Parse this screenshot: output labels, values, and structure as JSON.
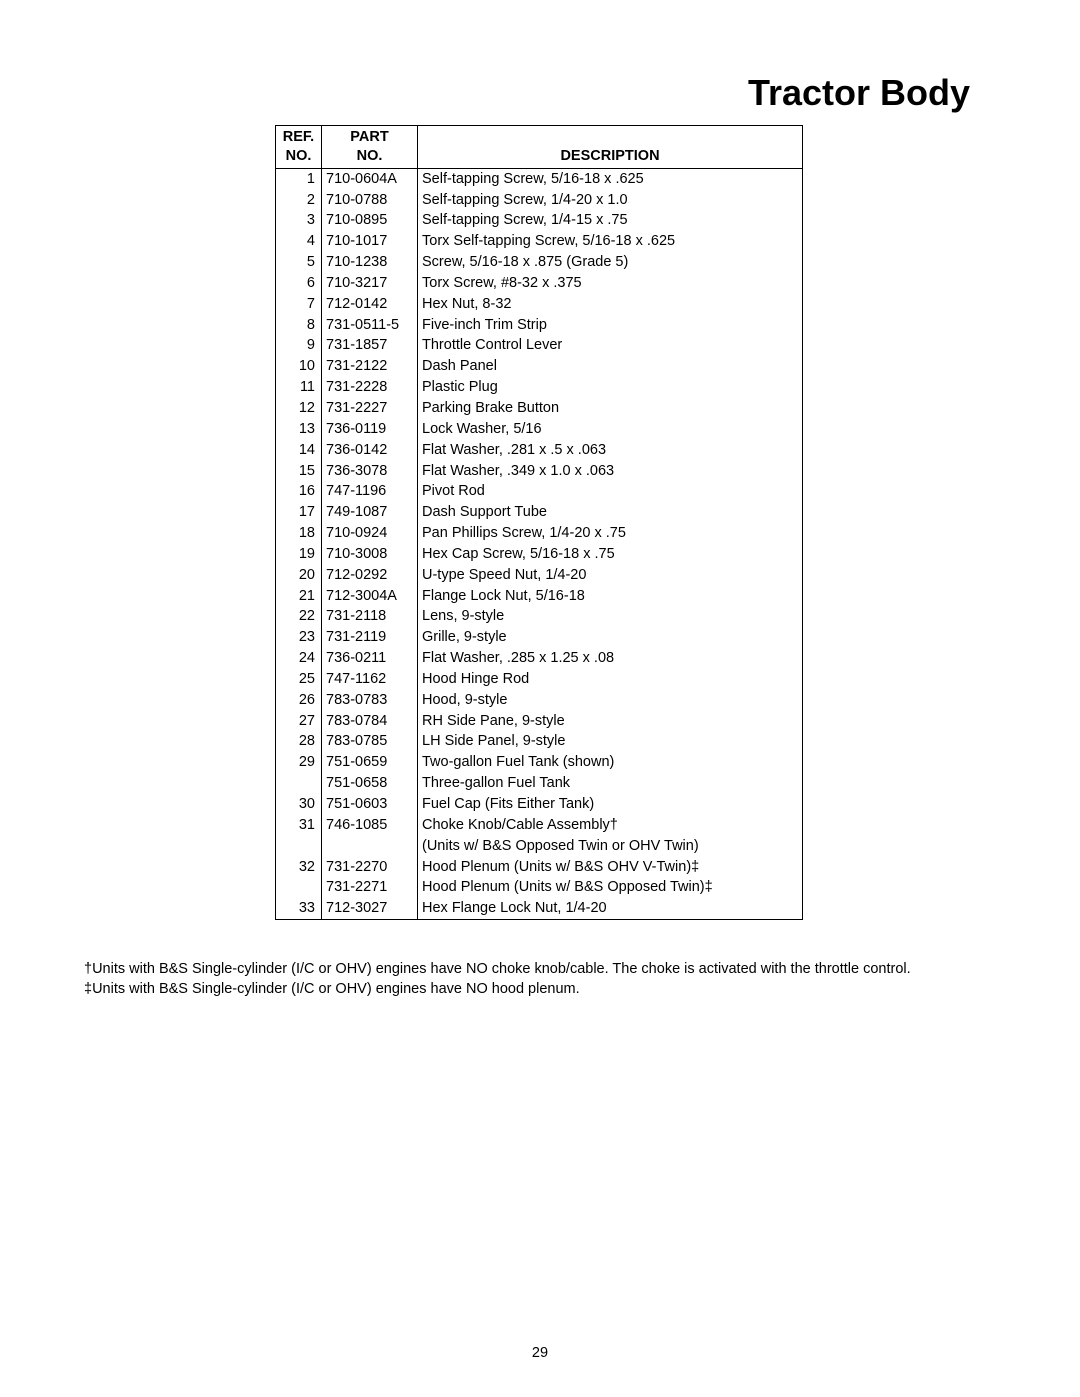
{
  "title": "Tractor Body",
  "table": {
    "headers": {
      "ref_line1": "REF.",
      "ref_line2": "NO.",
      "part_line1": "PART",
      "part_line2": "NO.",
      "desc": "DESCRIPTION"
    },
    "rows": [
      {
        "ref": "1",
        "part": "710-0604A",
        "desc": "Self-tapping Screw, 5/16-18 x .625"
      },
      {
        "ref": "2",
        "part": "710-0788",
        "desc": "Self-tapping Screw, 1/4-20 x 1.0"
      },
      {
        "ref": "3",
        "part": "710-0895",
        "desc": "Self-tapping Screw, 1/4-15 x .75"
      },
      {
        "ref": "4",
        "part": "710-1017",
        "desc": "Torx Self-tapping Screw, 5/16-18 x .625"
      },
      {
        "ref": "5",
        "part": "710-1238",
        "desc": "Screw, 5/16-18 x .875 (Grade 5)"
      },
      {
        "ref": "6",
        "part": "710-3217",
        "desc": "Torx Screw, #8-32 x .375"
      },
      {
        "ref": "7",
        "part": "712-0142",
        "desc": "Hex Nut, 8-32"
      },
      {
        "ref": "8",
        "part": "731-0511-5",
        "desc": "Five-inch Trim Strip"
      },
      {
        "ref": "9",
        "part": "731-1857",
        "desc": "Throttle Control Lever"
      },
      {
        "ref": "10",
        "part": "731-2122",
        "desc": "Dash Panel"
      },
      {
        "ref": "11",
        "part": "731-2228",
        "desc": "Plastic Plug"
      },
      {
        "ref": "12",
        "part": "731-2227",
        "desc": "Parking Brake Button"
      },
      {
        "ref": "13",
        "part": "736-0119",
        "desc": "Lock Washer, 5/16"
      },
      {
        "ref": "14",
        "part": "736-0142",
        "desc": "Flat Washer, .281 x .5 x .063"
      },
      {
        "ref": "15",
        "part": "736-3078",
        "desc": "Flat Washer, .349 x 1.0 x .063"
      },
      {
        "ref": "16",
        "part": "747-1196",
        "desc": "Pivot Rod"
      },
      {
        "ref": "17",
        "part": "749-1087",
        "desc": "Dash Support Tube"
      },
      {
        "ref": "18",
        "part": "710-0924",
        "desc": "Pan Phillips Screw, 1/4-20 x .75"
      },
      {
        "ref": "19",
        "part": "710-3008",
        "desc": "Hex Cap Screw, 5/16-18 x .75"
      },
      {
        "ref": "20",
        "part": "712-0292",
        "desc": "U-type Speed Nut, 1/4-20"
      },
      {
        "ref": "21",
        "part": "712-3004A",
        "desc": "Flange Lock Nut, 5/16-18"
      },
      {
        "ref": "22",
        "part": "731-2118",
        "desc": "Lens, 9-style"
      },
      {
        "ref": "23",
        "part": "731-2119",
        "desc": "Grille, 9-style"
      },
      {
        "ref": "24",
        "part": "736-0211",
        "desc": "Flat Washer, .285 x 1.25 x .08"
      },
      {
        "ref": "25",
        "part": "747-1162",
        "desc": "Hood Hinge Rod"
      },
      {
        "ref": "26",
        "part": "783-0783",
        "desc": "Hood, 9-style"
      },
      {
        "ref": "27",
        "part": "783-0784",
        "desc": "RH Side Pane, 9-style"
      },
      {
        "ref": "28",
        "part": "783-0785",
        "desc": "LH Side Panel, 9-style"
      },
      {
        "ref": "29",
        "part": "751-0659",
        "desc": "Two-gallon Fuel Tank (shown)"
      },
      {
        "ref": "",
        "part": "751-0658",
        "desc": "Three-gallon Fuel Tank"
      },
      {
        "ref": "30",
        "part": "751-0603",
        "desc": "Fuel Cap (Fits Either Tank)"
      },
      {
        "ref": "31",
        "part": "746-1085",
        "desc": "Choke Knob/Cable Assembly†"
      },
      {
        "ref": "",
        "part": "",
        "desc": "(Units w/ B&S Opposed Twin or OHV Twin)"
      },
      {
        "ref": "32",
        "part": "731-2270",
        "desc": "Hood Plenum (Units w/ B&S OHV V-Twin)‡"
      },
      {
        "ref": "",
        "part": "731-2271",
        "desc": "Hood Plenum (Units w/ B&S Opposed Twin)‡"
      },
      {
        "ref": "33",
        "part": "712-3027",
        "desc": "Hex Flange Lock Nut, 1/4-20"
      }
    ]
  },
  "footnotes": {
    "line1": "†Units with B&S Single-cylinder (I/C or OHV) engines have NO choke knob/cable. The choke is activated with the throttle control.",
    "line2": "‡Units with B&S Single-cylinder (I/C or OHV) engines have NO hood plenum."
  },
  "page_number": "29"
}
